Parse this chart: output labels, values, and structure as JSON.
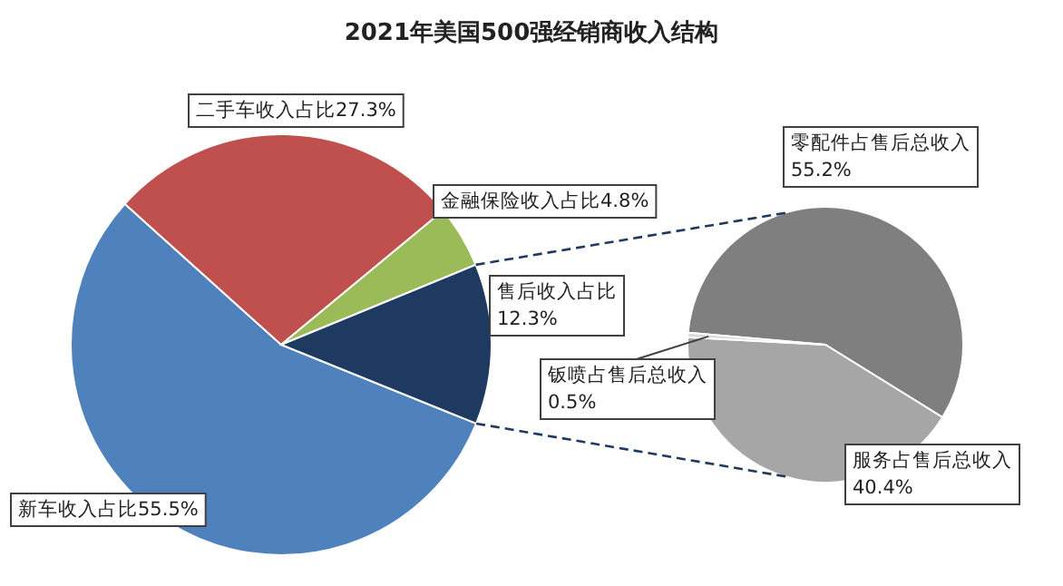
{
  "chart_data": [
    {
      "type": "pie",
      "title": "2021年美国500强经销商收入结构",
      "categories": [
        "新车收入占比",
        "二手车收入占比",
        "金融保险收入占比",
        "售后收入占比"
      ],
      "values": [
        55.5,
        27.3,
        4.8,
        12.3
      ],
      "value_labels": [
        "55.5%",
        "27.3%",
        "4.8%",
        "12.3%"
      ],
      "colors": [
        "#4f81bd",
        "#c0504d",
        "#9bbb59",
        "#1f3a60"
      ]
    },
    {
      "type": "pie",
      "categories": [
        "零配件占售后总收入",
        "服务占售后总收入",
        "钣喷占售后总收入"
      ],
      "values": [
        55.2,
        40.4,
        0.5
      ],
      "value_labels": [
        "55.2%",
        "40.4%",
        "0.5%"
      ],
      "colors": [
        "#7f7f7f",
        "#a6a6a6",
        "#d9d9d9"
      ]
    }
  ]
}
